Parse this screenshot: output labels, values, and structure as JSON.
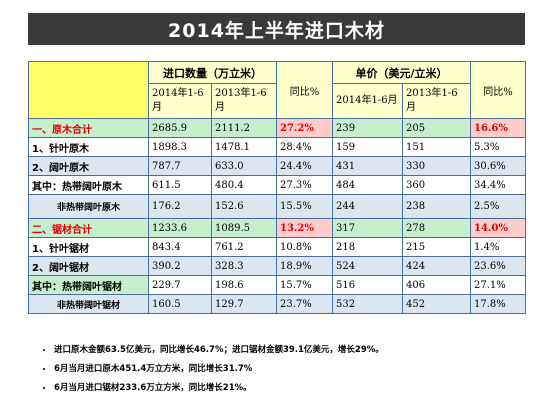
{
  "title": "2014年上半年进口木材",
  "header": {
    "group_volume": "进口数量（万立米）",
    "group_price": "单价（美元/立米）",
    "yoy": "同比%",
    "col_2014": "2014年1-6月",
    "col_2013": "2013年1-6月"
  },
  "rows": [
    {
      "label": "一、原木合计",
      "v2014": "2685.9",
      "v2013": "2111.2",
      "vyoy": "27.2%",
      "p2014": "239",
      "p2013": "205",
      "pyoy": "16.6%"
    },
    {
      "label": "1、针叶原木",
      "v2014": "1898.3",
      "v2013": "1478.1",
      "vyoy": "28.4%",
      "p2014": "159",
      "p2013": "151",
      "pyoy": "5.3%"
    },
    {
      "label": "2、阔叶原木",
      "v2014": "787.7",
      "v2013": "633.0",
      "vyoy": "24.4%",
      "p2014": "431",
      "p2013": "330",
      "pyoy": "30.6%"
    },
    {
      "label": "其中：热带阔叶原木",
      "v2014": "611.5",
      "v2013": "480.4",
      "vyoy": "27.3%",
      "p2014": "484",
      "p2013": "360",
      "pyoy": "34.4%"
    },
    {
      "label": "非热带阔叶原木",
      "v2014": "176.2",
      "v2013": "152.6",
      "vyoy": "15.5%",
      "p2014": "244",
      "p2013": "238",
      "pyoy": "2.5%"
    },
    {
      "label": "二、锯材合计",
      "v2014": "1233.6",
      "v2013": "1089.5",
      "vyoy": "13.2%",
      "p2014": "317",
      "p2013": "278",
      "pyoy": "14.0%"
    },
    {
      "label": "1、针叶锯材",
      "v2014": "843.4",
      "v2013": "761.2",
      "vyoy": "10.8%",
      "p2014": "218",
      "p2013": "215",
      "pyoy": "1.4%"
    },
    {
      "label": "2、阔叶锯材",
      "v2014": "390.2",
      "v2013": "328.3",
      "vyoy": "18.9%",
      "p2014": "524",
      "p2013": "424",
      "pyoy": "23.6%"
    },
    {
      "label": "其中：热带阔叶锯材",
      "v2014": "229.7",
      "v2013": "198.6",
      "vyoy": "15.7%",
      "p2014": "516",
      "p2013": "406",
      "pyoy": "27.1%"
    },
    {
      "label": "非热带阔叶锯材",
      "v2014": "160.5",
      "v2013": "129.7",
      "vyoy": "23.7%",
      "p2014": "532",
      "p2013": "452",
      "pyoy": "17.8%"
    }
  ],
  "notes": [
    "进口原木金额63.5亿美元，同比增长46.7%；进口锯材金额39.1亿美元，增长29%。",
    "6月当月进口原木451.4万立方米，同比增长31.7%",
    "6月当月进口锯材233.6万立方米，同比增长21%。"
  ]
}
